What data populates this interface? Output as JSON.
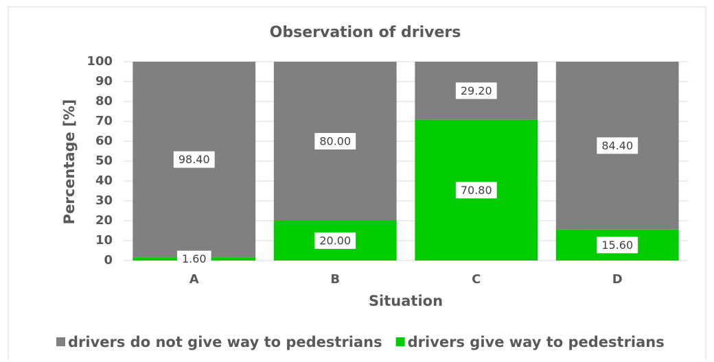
{
  "chart_data": {
    "type": "stacked_bar",
    "title": "Observation of drivers",
    "x_label": "Situation",
    "y_label": "Percentage [%]",
    "categories": [
      "A",
      "B",
      "C",
      "D"
    ],
    "series": [
      {
        "name": "drivers do not give way to pedestrians",
        "color": "#808080",
        "values": [
          98.4,
          80,
          29.2,
          84.4
        ],
        "value_labels": [
          "98.40",
          "80.00",
          "29.20",
          "84.40"
        ]
      },
      {
        "name": "drivers give way to pedestrians",
        "color": "#00cc00",
        "values": [
          1.6,
          20,
          70.8,
          15.6
        ],
        "value_labels": [
          "1.60",
          "20.00",
          "70.80",
          "15.60"
        ]
      }
    ],
    "ylim": [
      0,
      100
    ],
    "yticks": [
      0,
      10,
      20,
      30,
      40,
      50,
      60,
      70,
      80,
      90,
      100
    ],
    "grid": true,
    "legend": "bottom"
  }
}
